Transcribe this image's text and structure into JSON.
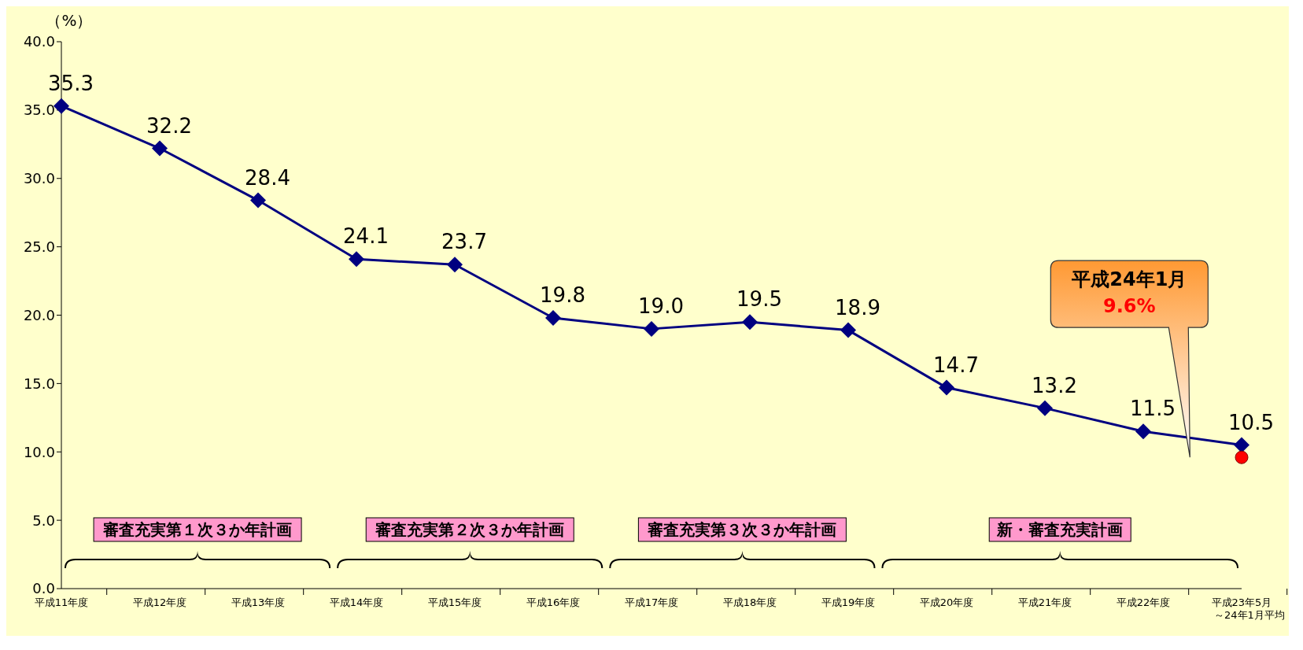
{
  "chart_data": {
    "type": "line",
    "ylabel": "（%）",
    "categories": [
      "平成11年度",
      "平成12年度",
      "平成13年度",
      "平成14年度",
      "平成15年度",
      "平成16年度",
      "平成17年度",
      "平成18年度",
      "平成19年度",
      "平成20年度",
      "平成21年度",
      "平成22年度",
      "平成23年5月～24年1月平均"
    ],
    "series": [
      {
        "color": "#000080",
        "values": [
          35.3,
          32.2,
          28.4,
          24.1,
          23.7,
          19.8,
          19.0,
          19.5,
          18.9,
          14.7,
          13.2,
          11.5,
          10.5
        ],
        "value_labels": [
          "35.3",
          "32.2",
          "28.4",
          "24.1",
          "23.7",
          "19.8",
          "19.0",
          "19.5",
          "18.9",
          "14.7",
          "13.2",
          "11.5",
          "10.5"
        ]
      },
      {
        "type": "scatter",
        "marker": "circle",
        "color": "#ff0000",
        "values": [
          null,
          null,
          null,
          null,
          null,
          null,
          null,
          null,
          null,
          null,
          null,
          null,
          9.6
        ]
      }
    ],
    "marker": "diamond",
    "ylim": [
      0,
      40
    ],
    "yticks": [
      {
        "value": 0,
        "label": "0.0"
      },
      {
        "value": 5,
        "label": "5.0"
      },
      {
        "value": 10,
        "label": "10.0"
      },
      {
        "value": 15,
        "label": "15.0"
      },
      {
        "value": 20,
        "label": "20.0"
      },
      {
        "value": 25,
        "label": "25.0"
      },
      {
        "value": 30,
        "label": "30.0"
      },
      {
        "value": 35,
        "label": "35.0"
      },
      {
        "value": 40,
        "label": "40.0"
      }
    ],
    "annotations": [
      "審査充実第１次３か年計画",
      "審査充実第２次３か年計画",
      "審査充実第３次３か年計画",
      "新・審査充実計画",
      "平成24年1月\n9.6%"
    ]
  }
}
